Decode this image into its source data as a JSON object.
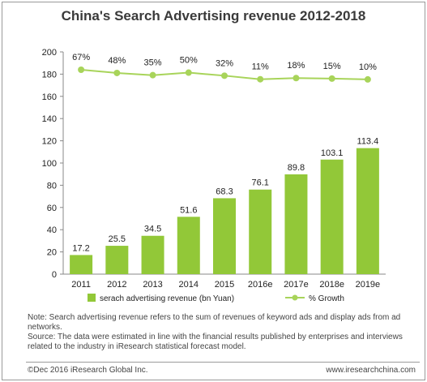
{
  "chart_data": {
    "type": "bar+line",
    "title": "China's Search Advertising revenue 2012-2018",
    "categories": [
      "2011",
      "2012",
      "2013",
      "2014",
      "2015",
      "2016e",
      "2017e",
      "2018e",
      "2019e"
    ],
    "series": [
      {
        "name": "serach advertising revenue (bn Yuan)",
        "type": "bar",
        "values": [
          17.2,
          25.5,
          34.5,
          51.6,
          68.3,
          76.1,
          89.8,
          103.1,
          113.4
        ],
        "labels": [
          "17.2",
          "25.5",
          "34.5",
          "51.6",
          "68.3",
          "76.1",
          "89.8",
          "103.1",
          "113.4"
        ],
        "color": "#92c838"
      },
      {
        "name": "% Growth",
        "type": "line",
        "values": [
          67,
          48,
          35,
          50,
          32,
          11,
          18,
          15,
          10
        ],
        "labels": [
          "67%",
          "48%",
          "35%",
          "50%",
          "32%",
          "11%",
          "18%",
          "15%",
          "10%"
        ],
        "color": "#a8d45a"
      }
    ],
    "y_ticks": [
      "0",
      "20",
      "40",
      "60",
      "80",
      "100",
      "120",
      "140",
      "160",
      "180",
      "200"
    ],
    "ylim": [
      0,
      200
    ],
    "legend_position": "bottom"
  },
  "notes": {
    "line1": "Note: Search advertising revenue refers to the sum of revenues of keyword ads and display ads from ad networks.",
    "line2": "Source: The data were estimated in line  with  the financial results published by enterprises and interviews related to the industry in iResearch statistical forecast model."
  },
  "footer": {
    "copyright": "©Dec 2016 iResearch  Global Inc.",
    "website": "www.iresearchchina.com"
  }
}
